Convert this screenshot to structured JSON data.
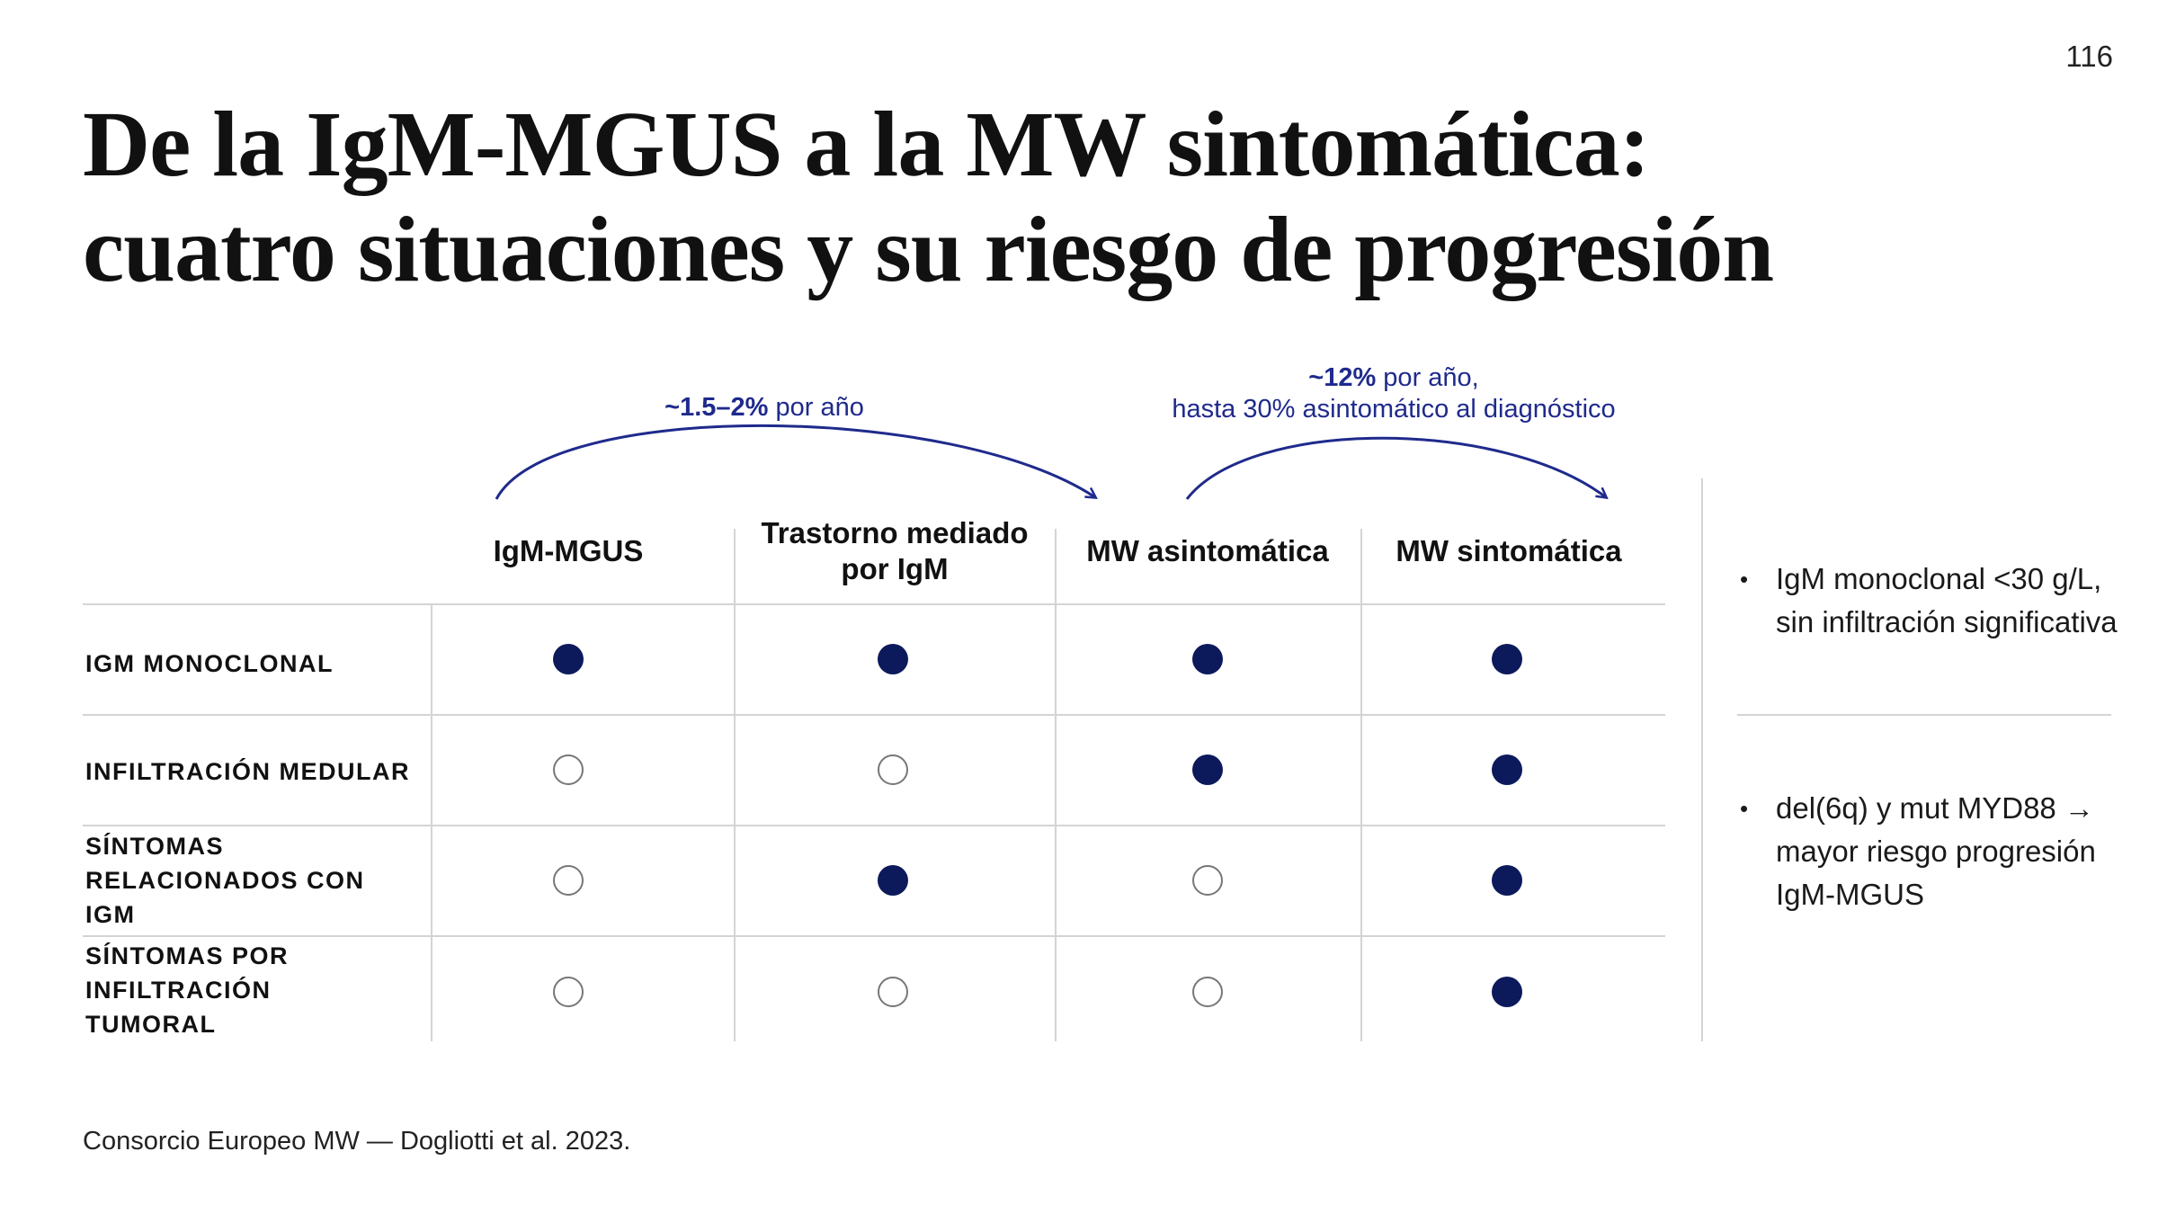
{
  "page_number": "116",
  "title": {
    "line1": "De la IgM-MGUS a la MW sintomática:",
    "line2": "cuatro situaciones y su riesgo de progresión"
  },
  "progressions": [
    {
      "rate": "~1.5–2%",
      "suffix": " por año",
      "detail": ""
    },
    {
      "rate": "~12%",
      "suffix": " por año,",
      "detail": "hasta 30% asintomático al diagnóstico"
    }
  ],
  "columns": [
    "IgM-MGUS",
    "Trastorno mediado por IgM",
    "MW asintomática",
    "MW sintomática"
  ],
  "rows": [
    {
      "label": "IGM MONOCLONAL",
      "values": [
        true,
        true,
        true,
        true
      ]
    },
    {
      "label": "INFILTRACIÓN MEDULAR",
      "values": [
        false,
        false,
        true,
        true
      ]
    },
    {
      "label": "SÍNTOMAS RELACIONADOS CON IGM",
      "values": [
        false,
        true,
        false,
        true
      ]
    },
    {
      "label": "SÍNTOMAS POR INFILTRACIÓN TUMORAL",
      "values": [
        false,
        false,
        false,
        true
      ]
    }
  ],
  "side_notes": [
    "IgM monoclonal <30 g/L, sin infiltración significativa",
    "del(6q) y mut MYD88 → mayor riesgo progresión IgM-MGUS"
  ],
  "colors": {
    "accent": "#1f2a8c",
    "dot_filled": "#0c1a5c",
    "grid": "#d4d4d4"
  },
  "source": "Consorcio Europeo MW — Dogliotti et al. 2023."
}
